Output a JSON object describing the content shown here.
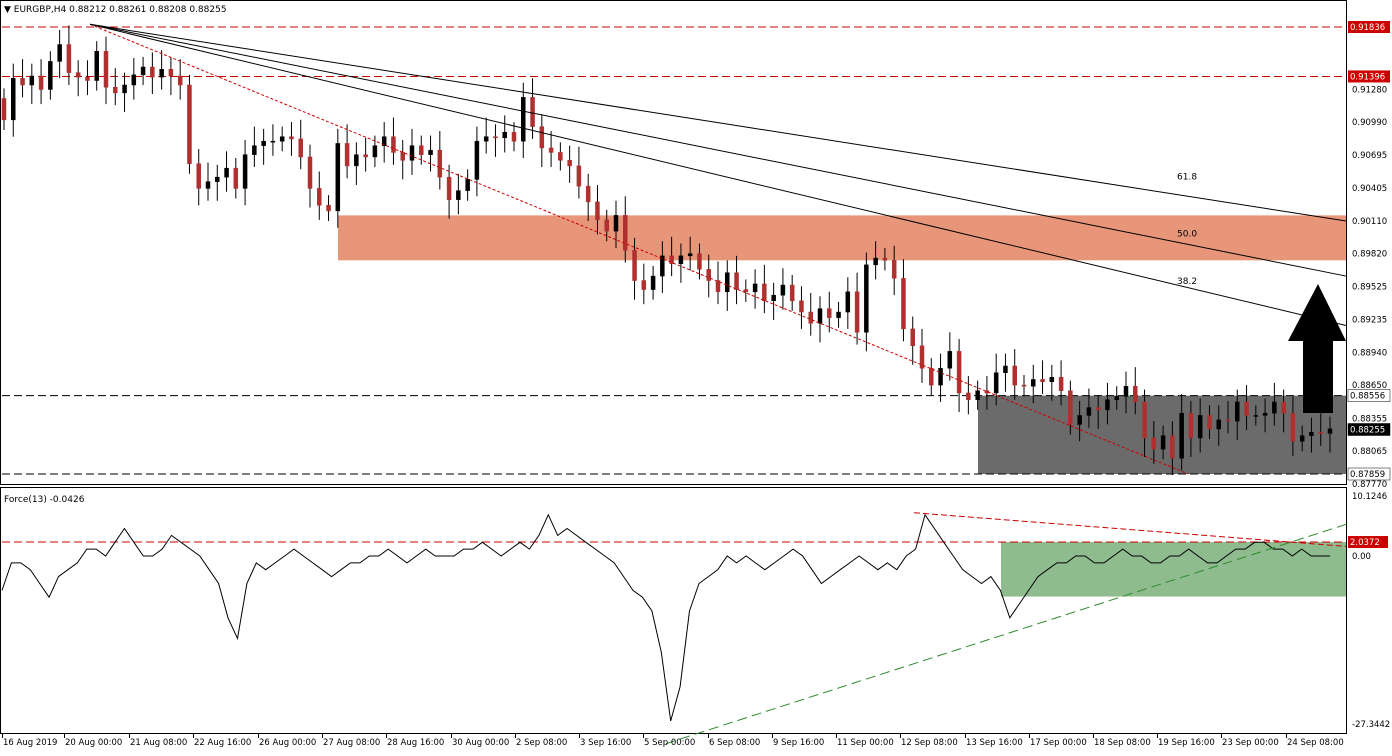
{
  "symbol_header": {
    "arrow": "▼",
    "text": "EURGBP,H4  0.88212 0.88261 0.88208 0.88255"
  },
  "indicator_header": {
    "text": "Force(13) -0.0426"
  },
  "colors": {
    "bull": "#000000",
    "bear": "#b03030",
    "resistance_zone": "#e8967a",
    "support_zone": "#6b6b6b",
    "force_zone": "#8fbc8f",
    "red_level": "#cc0000",
    "price_tag_red": "#cc0000",
    "force_trend": "#2e8b2e"
  },
  "chart_data": [
    {
      "type": "candlestick",
      "instrument": "EURGBP",
      "timeframe": "H4",
      "ohlc_last": {
        "open": 0.88212,
        "high": 0.88261,
        "low": 0.88208,
        "close": 0.88255
      },
      "ylim": [
        0.8777,
        0.9193
      ],
      "y_ticks": [
        "0.91836",
        "0.91396",
        "0.91280",
        "0.90990",
        "0.90695",
        "0.90405",
        "0.90110",
        "0.89820",
        "0.89525",
        "0.89235",
        "0.88940",
        "0.88650",
        "0.88556",
        "0.88355",
        "0.88255",
        "0.88065",
        "0.87859",
        "0.87770"
      ],
      "x_ticks": [
        "16 Aug 2019",
        "20 Aug 00:00",
        "21 Aug 08:00",
        "22 Aug 16:00",
        "26 Aug 00:00",
        "27 Aug 08:00",
        "28 Aug 16:00",
        "30 Aug 00:00",
        "2 Sep 08:00",
        "3 Sep 16:00",
        "5 Sep 00:00",
        "6 Sep 08:00",
        "9 Sep 16:00",
        "11 Sep 00:00",
        "12 Sep 08:00",
        "13 Sep 16:00",
        "17 Sep 00:00",
        "18 Sep 08:00",
        "19 Sep 16:00",
        "23 Sep 00:00",
        "24 Sep 08:00"
      ],
      "closes": [
        0.9101,
        0.9138,
        0.9132,
        0.914,
        0.9128,
        0.9153,
        0.9168,
        0.9143,
        0.9139,
        0.9136,
        0.9162,
        0.913,
        0.9125,
        0.9132,
        0.9141,
        0.9148,
        0.9139,
        0.9146,
        0.914,
        0.9132,
        0.9062,
        0.904,
        0.9046,
        0.905,
        0.9058,
        0.904,
        0.907,
        0.9078,
        0.9082,
        0.9082,
        0.9086,
        0.9084,
        0.9068,
        0.904,
        0.9025,
        0.902,
        0.908,
        0.906,
        0.907,
        0.9068,
        0.9078,
        0.9086,
        0.9072,
        0.9065,
        0.9078,
        0.907,
        0.9074,
        0.905,
        0.903,
        0.9038,
        0.9048,
        0.9082,
        0.9086,
        0.9085,
        0.909,
        0.9082,
        0.9121,
        0.9095,
        0.9076,
        0.9072,
        0.9065,
        0.906,
        0.9042,
        0.9028,
        0.9012,
        0.9002,
        0.9016,
        0.8985,
        0.8958,
        0.895,
        0.8962,
        0.898,
        0.8973,
        0.898,
        0.8982,
        0.8968,
        0.8958,
        0.8948,
        0.8965,
        0.895,
        0.8948,
        0.8955,
        0.894,
        0.8945,
        0.8954,
        0.894,
        0.893,
        0.892,
        0.8933,
        0.8925,
        0.893,
        0.8948,
        0.8912,
        0.8972,
        0.8978,
        0.8976,
        0.896,
        0.8915,
        0.89,
        0.888,
        0.8865,
        0.888,
        0.8895,
        0.8858,
        0.8852,
        0.886,
        0.8858,
        0.8876,
        0.8882,
        0.8865,
        0.8864,
        0.887,
        0.8868,
        0.8872,
        0.886,
        0.883,
        0.8838,
        0.8845,
        0.8843,
        0.8852,
        0.8855,
        0.8864,
        0.885,
        0.8818,
        0.8808,
        0.882,
        0.88,
        0.884,
        0.8818,
        0.8838,
        0.8826,
        0.8834,
        0.8833,
        0.885,
        0.8838,
        0.8838,
        0.884,
        0.885,
        0.884,
        0.8815,
        0.882,
        0.8823,
        0.8822,
        0.8826
      ],
      "levels": [
        0.91836,
        0.91396,
        0.88556,
        0.87859
      ],
      "resistance_zone": [
        0.8976,
        0.9016
      ],
      "support_zone": [
        0.87859,
        0.88556
      ],
      "fibonacci_fan": [
        "38.2",
        "50.0",
        "61.8"
      ],
      "price_tags": [
        "0.91836",
        "0.91396",
        "0.88556",
        "0.88255",
        "0.87859"
      ],
      "annotations": [
        "up-arrow"
      ]
    },
    {
      "type": "line",
      "name": "Force(13)",
      "last_value": -0.0426,
      "ylim": [
        -27.3442,
        10.1246
      ],
      "y_ticks": [
        "10.1246",
        "2.0372",
        "0.00",
        "-27.3442"
      ],
      "level": 2.0372,
      "values": [
        -5,
        -1,
        -1,
        -2,
        -4,
        -6,
        -3,
        -2,
        -1,
        1,
        1,
        0,
        2,
        4,
        2,
        0,
        0,
        1,
        3,
        2,
        1,
        0,
        -2,
        -4,
        -9,
        -12,
        -4,
        -1,
        -2,
        -1,
        0,
        1,
        0,
        -1,
        -2,
        -3,
        -2,
        -1,
        -1,
        0,
        0,
        1,
        0,
        -1,
        0,
        1,
        0,
        0,
        0,
        1,
        1,
        2,
        1,
        0,
        1,
        2,
        1,
        3,
        6,
        3,
        4,
        3,
        2,
        1,
        0,
        -1,
        -3,
        -5,
        -6,
        -8,
        -14,
        -24,
        -19,
        -8,
        -4,
        -3,
        -2,
        0,
        -1,
        0,
        -1,
        -2,
        -1,
        0,
        1,
        0,
        -2,
        -4,
        -3,
        -2,
        -1,
        0,
        -1,
        -2,
        -1,
        -2,
        0,
        1,
        6,
        4,
        2,
        0,
        -2,
        -3,
        -4,
        -3,
        -5,
        -9,
        -7,
        -5,
        -3,
        -2,
        -1,
        -1,
        0,
        0,
        -1,
        -1,
        0,
        1,
        0,
        0,
        -1,
        -1,
        0,
        0,
        1,
        0,
        -1,
        -1,
        0,
        1,
        1,
        2,
        2,
        1,
        1,
        0,
        1,
        0,
        0,
        0
      ],
      "green_zone": [
        -5.9,
        2.0372
      ]
    }
  ]
}
